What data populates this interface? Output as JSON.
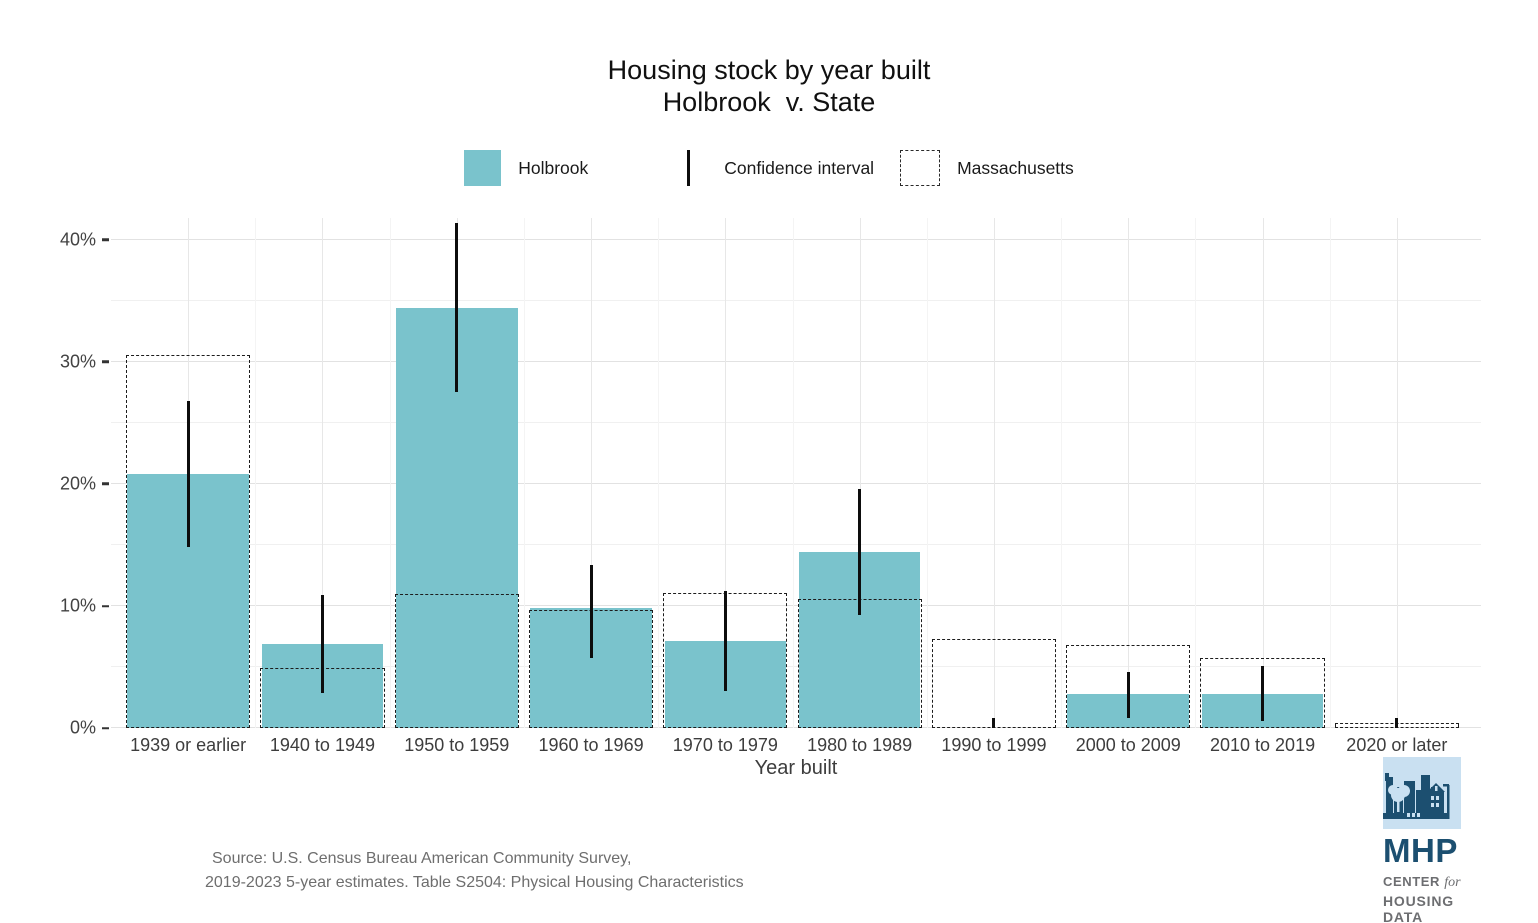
{
  "title": {
    "line1": "Housing stock by year built",
    "line2": "Holbrook  v. State"
  },
  "legend": {
    "holbrook_label": "Holbrook",
    "ci_label": "Confidence interval",
    "ma_label": "Massachusetts"
  },
  "colors": {
    "holbrook_fill": "#7ac3cc",
    "ci_line": "#0d0d0d",
    "ma_dash": "#1c1c1c",
    "grid_major": "#e2e2e2",
    "grid_minor": "#f0f0f0",
    "vgrid_major": "#e7e7e7",
    "vgrid_minor": "#f4f4f4",
    "axis_text": "#3d3d3d",
    "source_text": "#6e6e6e",
    "logo_navy": "#1c4f70",
    "logo_light_blue": "#c9e0f1",
    "logo_grey": "#6d6e71"
  },
  "chart_data": {
    "type": "bar",
    "title": "Housing stock by year built",
    "subtitle": "Holbrook  v. State",
    "xlabel": "Year built",
    "ylabel": "",
    "ylim": [
      0,
      41.8
    ],
    "yticks": [
      0,
      10,
      20,
      30,
      40
    ],
    "ytick_labels": [
      "0%",
      "10%",
      "20%",
      "30%",
      "40%"
    ],
    "grid": true,
    "legend_position": "top",
    "categories": [
      "1939 or earlier",
      "1940 to 1949",
      "1950 to 1959",
      "1960 to 1969",
      "1970 to 1979",
      "1980 to 1989",
      "1990 to 1999",
      "2000 to 2009",
      "2010 to 2019",
      "2020 or later"
    ],
    "series": [
      {
        "name": "Holbrook",
        "style": "filled-bar",
        "values": [
          20.8,
          6.9,
          34.4,
          9.8,
          7.1,
          14.4,
          0.0,
          2.8,
          2.8,
          0.0
        ]
      },
      {
        "name": "Massachusetts",
        "style": "dashed-outline-bar",
        "values": [
          30.6,
          4.9,
          11.0,
          9.7,
          11.1,
          10.6,
          7.3,
          6.8,
          5.7,
          0.4
        ]
      }
    ],
    "confidence_interval": {
      "name": "Confidence interval",
      "low": [
        14.8,
        2.9,
        27.5,
        5.7,
        3.0,
        9.3,
        0.0,
        0.8,
        0.6,
        0.0
      ],
      "high": [
        26.8,
        10.9,
        41.4,
        13.4,
        11.2,
        19.6,
        0.8,
        4.6,
        5.1,
        0.8
      ]
    }
  },
  "x_axis": {
    "label": "Year built"
  },
  "source": {
    "line1": "Source: U.S. Census Bureau American Community Survey,",
    "line2": "2019-2023 5-year estimates. Table S2504: Physical Housing Characteristics"
  },
  "logo": {
    "mhp": "MHP",
    "sub1": "CENTER",
    "sub1_italic": "for",
    "sub2": "HOUSING DATA"
  }
}
